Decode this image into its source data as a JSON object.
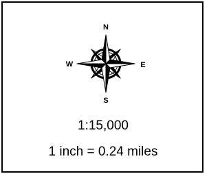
{
  "compass": {
    "north": "N",
    "east": "E",
    "south": "S",
    "west": "W"
  },
  "scale": {
    "ratio": "1:15,000",
    "distance": "1 inch = 0.24 miles"
  }
}
